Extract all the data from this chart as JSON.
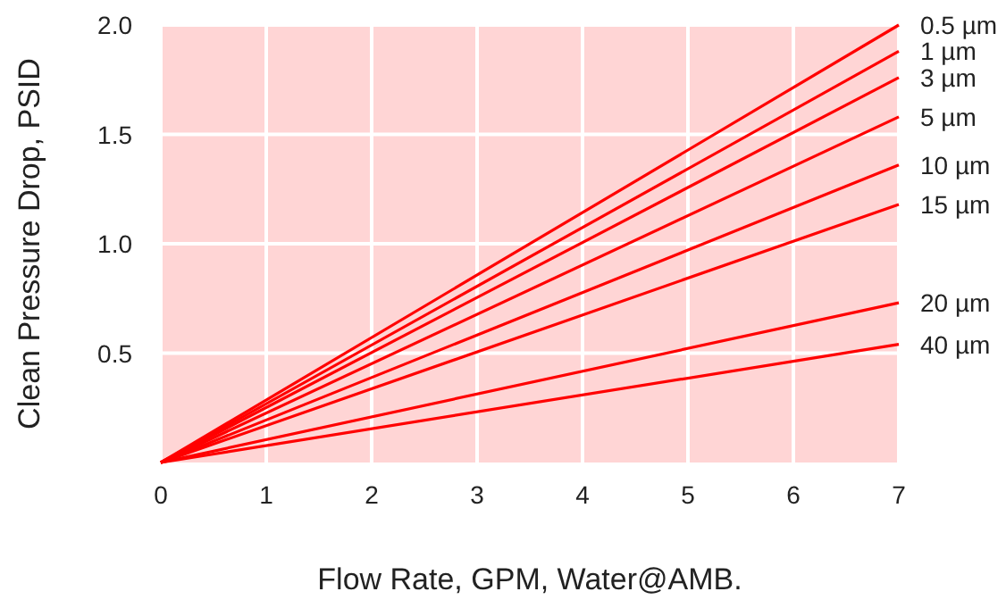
{
  "chart_data": {
    "type": "line",
    "xlabel": "Flow Rate, GPM, Water@AMB.",
    "ylabel": "Clean Pressure Drop, PSID",
    "x": [
      0,
      7
    ],
    "xlim": [
      0,
      7
    ],
    "xticks": [
      0,
      1,
      2,
      3,
      4,
      5,
      6,
      7
    ],
    "ylim": [
      0,
      2
    ],
    "yticks": [
      {
        "value": 0.5,
        "label": "0.5"
      },
      {
        "value": 1,
        "label": "1.0"
      },
      {
        "value": 1.5,
        "label": "1.5"
      },
      {
        "value": 2,
        "label": "2.0"
      }
    ],
    "grid": true,
    "line_style": "solid",
    "marker": "none",
    "series": [
      {
        "name": "0.5 µm",
        "color": "#ff0000",
        "values": [
          0,
          2.0
        ]
      },
      {
        "name": "1 µm",
        "color": "#ff0000",
        "values": [
          0,
          1.88
        ]
      },
      {
        "name": "3 µm",
        "color": "#ff0000",
        "values": [
          0,
          1.76
        ]
      },
      {
        "name": "5 µm",
        "color": "#ff0000",
        "values": [
          0,
          1.58
        ]
      },
      {
        "name": "10 µm",
        "color": "#ff0000",
        "values": [
          0,
          1.36
        ]
      },
      {
        "name": "15 µm",
        "color": "#ff0000",
        "values": [
          0,
          1.18
        ]
      },
      {
        "name": "20 µm",
        "color": "#ff0000",
        "values": [
          0,
          0.73
        ]
      },
      {
        "name": "40 µm",
        "color": "#ff0000",
        "values": [
          0,
          0.54
        ]
      }
    ]
  }
}
